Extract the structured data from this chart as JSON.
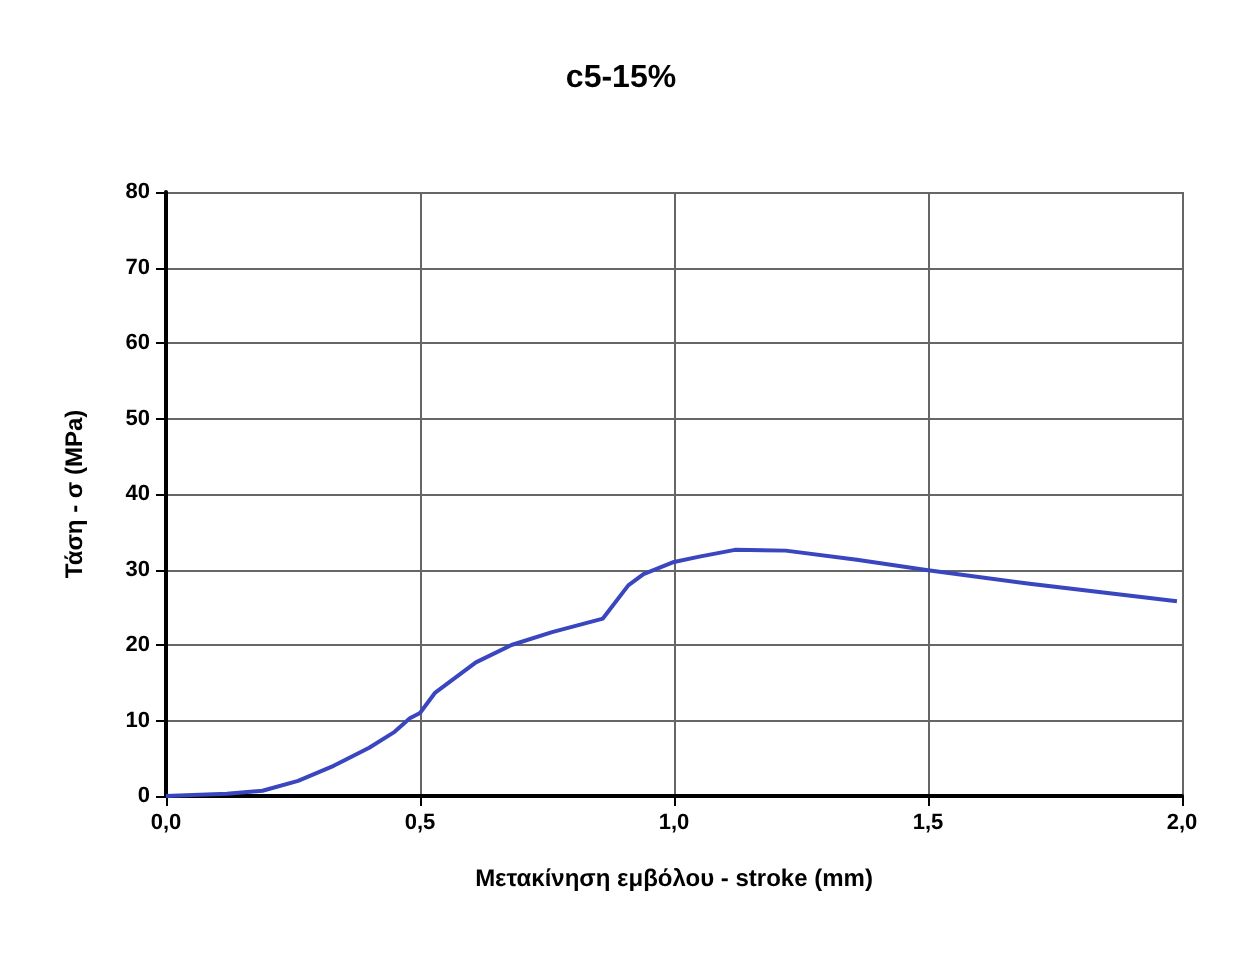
{
  "chart_data": {
    "type": "line",
    "title": "c5-15%",
    "xlabel": "Μετακίνηση εμβόλου - stroke (mm)",
    "ylabel": "Τάση - σ (MPa)",
    "x": [
      0,
      0.12,
      0.19,
      0.26,
      0.33,
      0.4,
      0.45,
      0.48,
      0.5,
      0.53,
      0.61,
      0.68,
      0.76,
      0.86,
      0.91,
      0.94,
      1.0,
      1.05,
      1.12,
      1.22,
      1.36,
      1.5,
      1.7,
      1.99
    ],
    "series": [
      {
        "color": "#3a45c0",
        "values": [
          0,
          0.3,
          0.7,
          2,
          4,
          6.4,
          8.5,
          10.3,
          11,
          13.7,
          17.7,
          20,
          21.7,
          23.5,
          27.9,
          29.4,
          31,
          31.7,
          32.6,
          32.5,
          31.3,
          29.9,
          28.1,
          25.8
        ]
      }
    ],
    "xlim": [
      0,
      2
    ],
    "xticks": [
      {
        "value": 0,
        "label": "0,0"
      },
      {
        "value": 0.5,
        "label": "0,5"
      },
      {
        "value": 1,
        "label": "1,0"
      },
      {
        "value": 1.5,
        "label": "1,5"
      },
      {
        "value": 2,
        "label": "2,0"
      }
    ],
    "ylim": [
      0,
      80
    ],
    "yticks": [
      0,
      10,
      20,
      30,
      40,
      50,
      60,
      70,
      80
    ],
    "grid": true,
    "marker": "none",
    "line_style": "solid"
  }
}
